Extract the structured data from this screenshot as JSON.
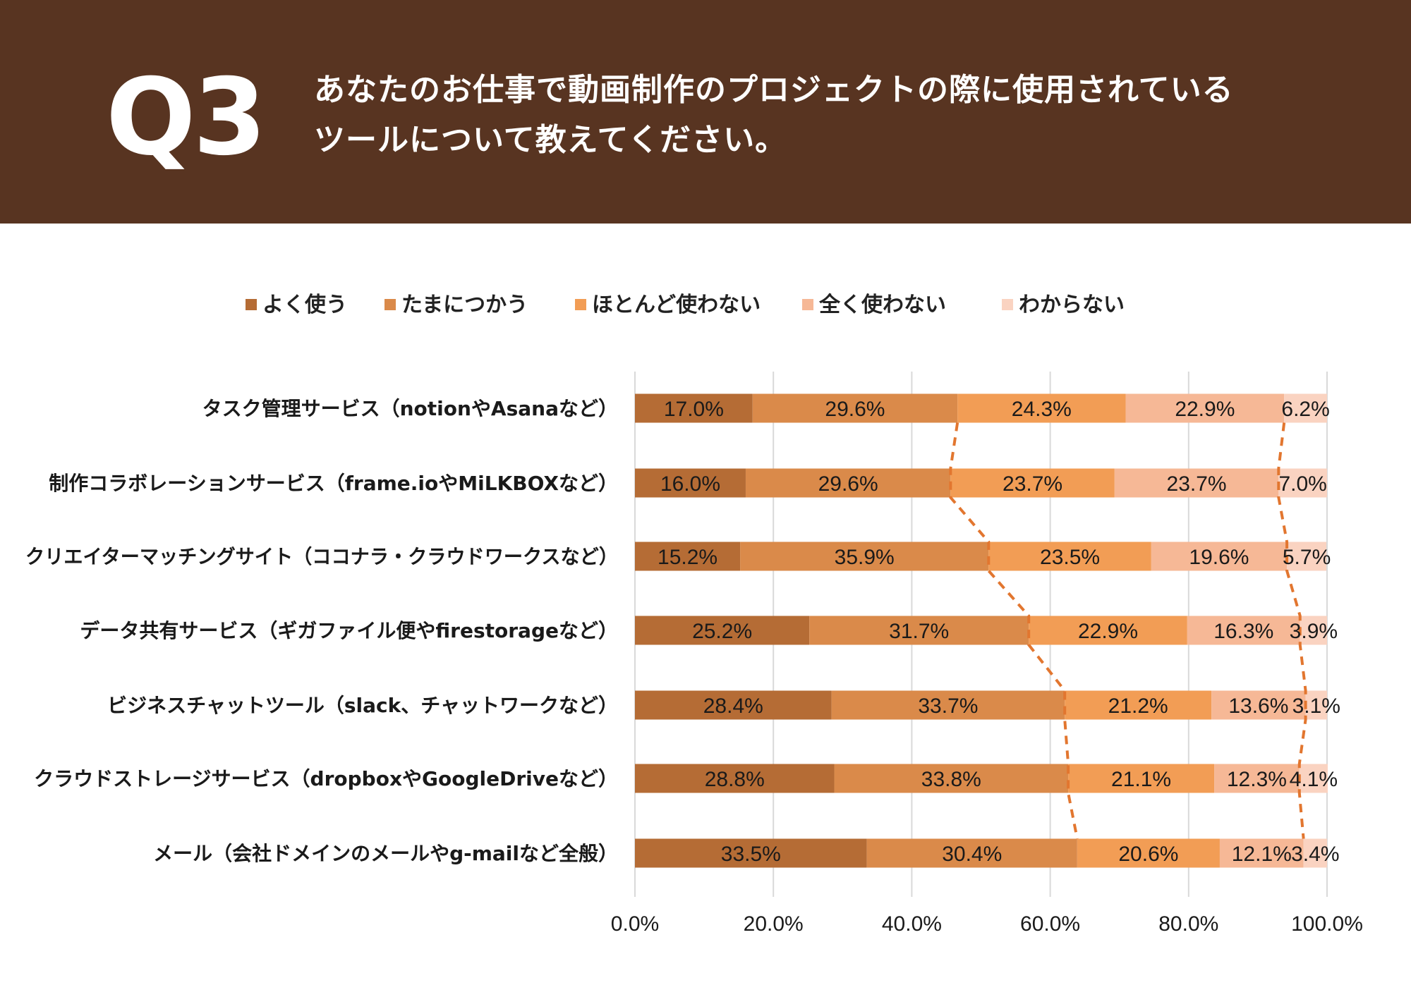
{
  "header": {
    "q_label": "Q3",
    "question_line1": "あなたのお仕事で動画制作のプロジェクトの際に使用されている",
    "question_line2": "ツールについて教えてください。"
  },
  "colors": {
    "header_bg": "#583421",
    "series": [
      "#b56c35",
      "#da8a4a",
      "#f29d55",
      "#f6b896",
      "#fad3c1"
    ],
    "connector": "#e2762f",
    "grid": "#d9d9d9"
  },
  "chart_data": {
    "type": "bar",
    "orientation": "horizontal",
    "stacked": true,
    "title": "",
    "xlabel": "",
    "ylabel": "",
    "xlim": [
      0,
      100
    ],
    "x_ticks": [
      "0.0%",
      "20.0%",
      "40.0%",
      "60.0%",
      "80.0%",
      "100.0%"
    ],
    "legend_position": "top",
    "categories": [
      "タスク管理サービス（notionやAsanaなど）",
      "制作コラボレーションサービス（frame.ioやMiLKBOXなど）",
      "クリエイターマッチングサイト（ココナラ・クラウドワークスなど）",
      "データ共有サービス（ギガファイル便やfirestorageなど）",
      "ビジネスチャットツール（slack、チャットワークなど）",
      "クラウドストレージサービス（dropboxやGoogleDriveなど）",
      "メール（会社ドメインのメールやg-mailなど全般）"
    ],
    "series": [
      {
        "name": "よく使う",
        "values": [
          17.0,
          16.0,
          15.2,
          25.2,
          28.4,
          28.8,
          33.5
        ],
        "labels": [
          "17.0%",
          "16.0%",
          "15.2%",
          "25.2%",
          "28.4%",
          "28.8%",
          "33.5%"
        ]
      },
      {
        "name": "たまにつかう",
        "values": [
          29.6,
          29.6,
          35.9,
          31.7,
          33.7,
          33.8,
          30.4
        ],
        "labels": [
          "29.6%",
          "29.6%",
          "35.9%",
          "31.7%",
          "33.7%",
          "33.8%",
          "30.4%"
        ]
      },
      {
        "name": "ほとんど使わない",
        "values": [
          24.3,
          23.7,
          23.5,
          22.9,
          21.2,
          21.1,
          20.6
        ],
        "labels": [
          "24.3%",
          "23.7%",
          "23.5%",
          "22.9%",
          "21.2%",
          "21.1%",
          "20.6%"
        ]
      },
      {
        "name": "全く使わない",
        "values": [
          22.9,
          23.7,
          19.6,
          16.3,
          13.6,
          12.3,
          12.1
        ],
        "labels": [
          "22.9%",
          "23.7%",
          "19.6%",
          "16.3%",
          "13.6%",
          "12.3%",
          "12.1%"
        ]
      },
      {
        "name": "わからない",
        "values": [
          6.2,
          7.0,
          5.7,
          3.9,
          3.1,
          4.1,
          3.4
        ],
        "labels": [
          "6.2%",
          "7.0%",
          "5.7%",
          "3.9%",
          "3.1%",
          "4.1%",
          "3.4%"
        ]
      }
    ]
  }
}
